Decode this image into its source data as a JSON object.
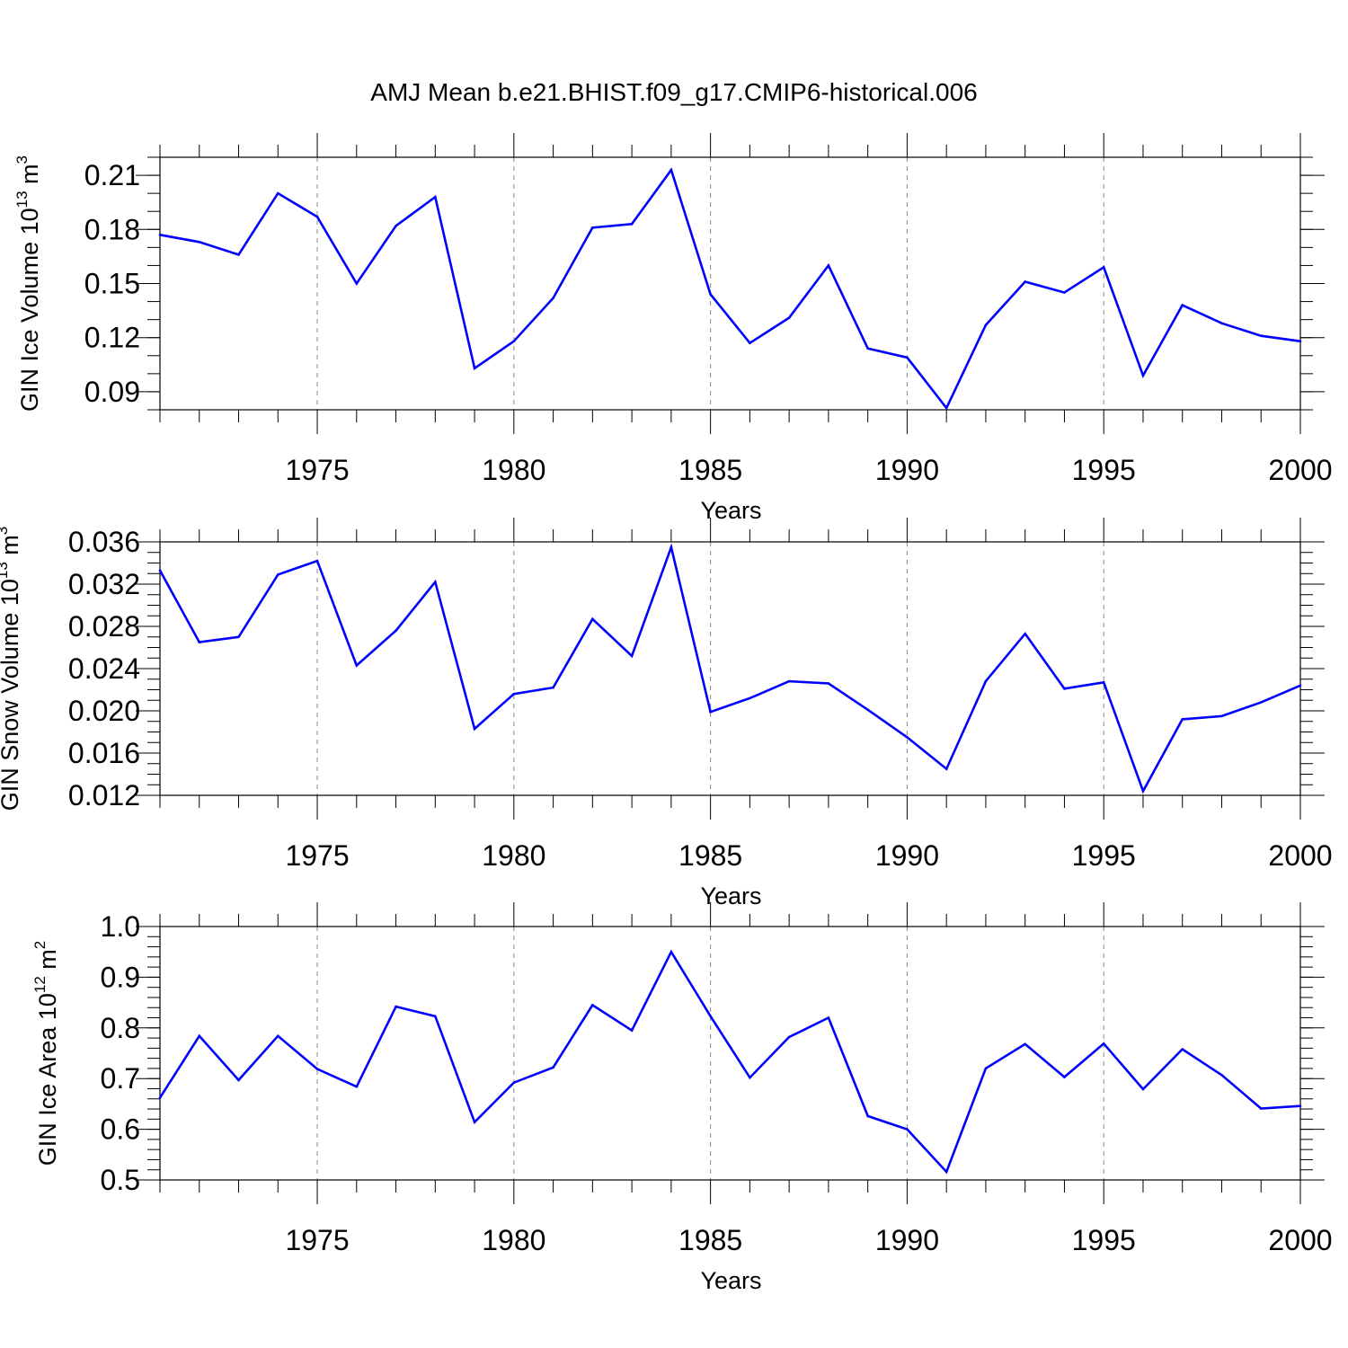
{
  "title": "AMJ Mean b.e21.BHIST.f09_g17.CMIP6-historical.006",
  "line_color": "#0000ff",
  "chart_data": [
    {
      "type": "line",
      "ylabel": {
        "text": "GIN Ice Volume 10",
        "sup": "13",
        "unit": " m",
        "unit_sup": "3"
      },
      "xlabel": "Years",
      "xlim": [
        1971,
        2000
      ],
      "ylim": [
        0.08,
        0.22
      ],
      "x_ticks": [
        1975,
        1980,
        1985,
        1990,
        1995,
        2000
      ],
      "y_ticks": [
        0.09,
        0.12,
        0.15,
        0.18,
        0.21
      ],
      "y_tick_labels": [
        "0.09",
        "0.12",
        "0.15",
        "0.18",
        "0.21"
      ],
      "y_minor_step": 0.01,
      "grid": "vertical dashed at major x ticks",
      "x": [
        1971,
        1972,
        1973,
        1974,
        1975,
        1976,
        1977,
        1978,
        1979,
        1980,
        1981,
        1982,
        1983,
        1984,
        1985,
        1986,
        1987,
        1988,
        1989,
        1990,
        1991,
        1992,
        1993,
        1994,
        1995,
        1996,
        1997,
        1998,
        1999,
        2000
      ],
      "y": [
        0.177,
        0.173,
        0.166,
        0.2,
        0.187,
        0.15,
        0.182,
        0.198,
        0.103,
        0.118,
        0.142,
        0.181,
        0.183,
        0.213,
        0.144,
        0.117,
        0.131,
        0.16,
        0.114,
        0.109,
        0.081,
        0.127,
        0.151,
        0.145,
        0.159,
        0.099,
        0.138,
        0.128,
        0.121,
        0.118
      ]
    },
    {
      "type": "line",
      "ylabel": {
        "text": "GIN Snow Volume 10",
        "sup": "13",
        "unit": " m",
        "unit_sup": "3"
      },
      "xlabel": "Years",
      "xlim": [
        1971,
        2000
      ],
      "ylim": [
        0.012,
        0.036
      ],
      "x_ticks": [
        1975,
        1980,
        1985,
        1990,
        1995,
        2000
      ],
      "y_ticks": [
        0.012,
        0.016,
        0.02,
        0.024,
        0.028,
        0.032,
        0.036
      ],
      "y_tick_labels": [
        "0.012",
        "0.016",
        "0.020",
        "0.024",
        "0.028",
        "0.032",
        "0.036"
      ],
      "y_minor_step": 0.001,
      "grid": "vertical dashed at major x ticks",
      "x": [
        1971,
        1972,
        1973,
        1974,
        1975,
        1976,
        1977,
        1978,
        1979,
        1980,
        1981,
        1982,
        1983,
        1984,
        1985,
        1986,
        1987,
        1988,
        1989,
        1990,
        1991,
        1992,
        1993,
        1994,
        1995,
        1996,
        1997,
        1998,
        1999,
        2000
      ],
      "y": [
        0.0333,
        0.0265,
        0.027,
        0.0329,
        0.0342,
        0.0243,
        0.0276,
        0.0322,
        0.0183,
        0.0216,
        0.0222,
        0.0287,
        0.0252,
        0.0355,
        0.0199,
        0.0212,
        0.0228,
        0.0226,
        0.0201,
        0.0175,
        0.0145,
        0.0228,
        0.0273,
        0.0221,
        0.0227,
        0.0124,
        0.0192,
        0.0195,
        0.0208,
        0.0224
      ]
    },
    {
      "type": "line",
      "ylabel": {
        "text": "GIN Ice Area 10",
        "sup": "12",
        "unit": " m",
        "unit_sup": "2"
      },
      "xlabel": "Years",
      "xlim": [
        1971,
        2000
      ],
      "ylim": [
        0.5,
        1.0
      ],
      "x_ticks": [
        1975,
        1980,
        1985,
        1990,
        1995,
        2000
      ],
      "y_ticks": [
        0.5,
        0.6,
        0.7,
        0.8,
        0.9,
        1.0
      ],
      "y_tick_labels": [
        "0.5",
        "0.6",
        "0.7",
        "0.8",
        "0.9",
        "1.0"
      ],
      "y_minor_step": 0.02,
      "grid": "vertical dashed at major x ticks",
      "x": [
        1971,
        1972,
        1973,
        1974,
        1975,
        1976,
        1977,
        1978,
        1979,
        1980,
        1981,
        1982,
        1983,
        1984,
        1985,
        1986,
        1987,
        1988,
        1989,
        1990,
        1991,
        1992,
        1993,
        1994,
        1995,
        1996,
        1997,
        1998,
        1999,
        2000
      ],
      "y": [
        0.662,
        0.784,
        0.697,
        0.784,
        0.719,
        0.684,
        0.842,
        0.823,
        0.614,
        0.692,
        0.722,
        0.845,
        0.795,
        0.95,
        0.823,
        0.702,
        0.782,
        0.82,
        0.626,
        0.6,
        0.516,
        0.72,
        0.768,
        0.703,
        0.769,
        0.679,
        0.758,
        0.707,
        0.641,
        0.646
      ]
    }
  ]
}
